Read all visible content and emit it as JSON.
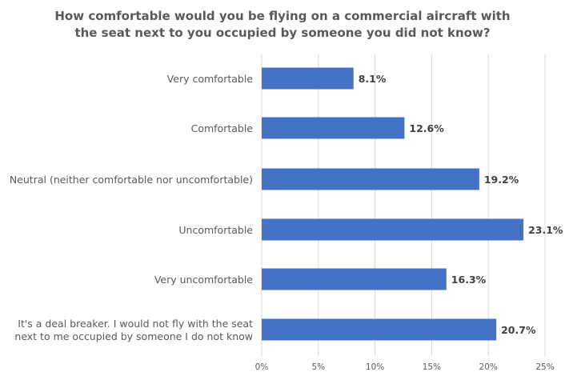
{
  "chart_data": {
    "type": "bar",
    "orientation": "horizontal",
    "title": "How comfortable would you be flying on a commercial aircraft with the seat next to you occupied by someone you did not know?",
    "title_lines": [
      "How comfortable would you be flying on a commercial aircraft with",
      "the seat next to you occupied by someone you did not know?"
    ],
    "categories": [
      [
        "Very comfortable"
      ],
      [
        "Comfortable"
      ],
      [
        "Neutral (neither comfortable nor uncomfortable)"
      ],
      [
        "Uncomfortable"
      ],
      [
        "Very uncomfortable"
      ],
      [
        "It's a deal breaker. I would not fly with the seat",
        "next to me occupied by someone I do not know"
      ]
    ],
    "values": [
      8.1,
      12.6,
      19.2,
      23.1,
      16.3,
      20.7
    ],
    "value_labels": [
      "8.1%",
      "12.6%",
      "19.2%",
      "23.1%",
      "16.3%",
      "20.7%"
    ],
    "xlim": [
      0,
      25
    ],
    "x_ticks": [
      0,
      5,
      10,
      15,
      20,
      25
    ],
    "x_tick_labels": [
      "0%",
      "5%",
      "10%",
      "15%",
      "20%",
      "25%"
    ],
    "xlabel": "",
    "ylabel": "",
    "grid": true,
    "legend": "none",
    "colors": {
      "bar": "#4472C4",
      "grid": "#D9D9D9",
      "text": "#595959",
      "data_label": "#404040"
    }
  }
}
